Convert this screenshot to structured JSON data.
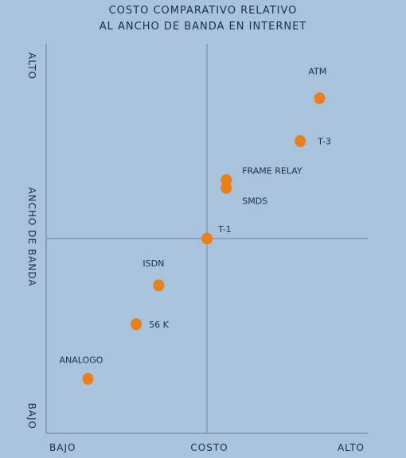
{
  "chart_data": {
    "type": "scatter",
    "title": "COSTO COMPARATIVO RELATIVO",
    "subtitle": "AL ANCHO DE BANDA EN INTERNET",
    "xlabel": "COSTO",
    "ylabel": "ANCHO DE BANDA",
    "x_ticks": {
      "low": "BAJO",
      "high": "ALTO"
    },
    "y_ticks": {
      "low": "BAJO",
      "high": "ALTO"
    },
    "xlim": [
      0,
      10
    ],
    "ylim": [
      0,
      10
    ],
    "points": [
      {
        "label": "ANALOGO",
        "x": 1.3,
        "y": 1.4
      },
      {
        "label": "56 K",
        "x": 2.8,
        "y": 2.8
      },
      {
        "label": "ISDN",
        "x": 3.5,
        "y": 3.8
      },
      {
        "label": "T-1",
        "x": 5.0,
        "y": 5.0
      },
      {
        "label": "FRAME RELAY",
        "x": 5.6,
        "y": 6.5
      },
      {
        "label": "SMDS",
        "x": 5.6,
        "y": 6.3
      },
      {
        "label": "T-3",
        "x": 7.9,
        "y": 7.5
      },
      {
        "label": "ATM",
        "x": 8.5,
        "y": 8.6
      }
    ],
    "grid": false,
    "quadrant_lines": {
      "x": 5,
      "y": 5
    },
    "point_color": "#e8801c",
    "background_color": "#a9c3dc",
    "line_color": "#7a93b0"
  }
}
